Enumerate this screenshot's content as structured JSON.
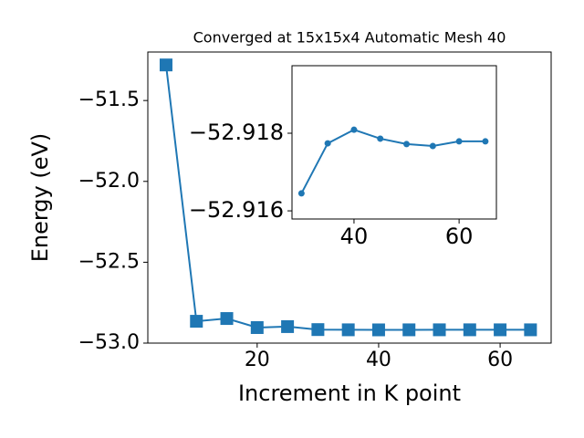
{
  "chart_data": [
    {
      "type": "line",
      "title": "Converged at 15x15x4 Automatic Mesh 40",
      "x_label": "Increment in K point",
      "y_label": "Energy (eV)",
      "x": [
        5,
        10,
        15,
        20,
        25,
        30,
        35,
        40,
        45,
        50,
        55,
        60,
        65
      ],
      "series": [
        {
          "color": "#1f77b4",
          "marker": "square",
          "values": [
            -51.28,
            -52.865,
            -52.848,
            -52.904,
            -52.898,
            -52.91645,
            -52.91774,
            -52.91809,
            -52.91786,
            -52.91772,
            -52.91767,
            -52.91779,
            -52.91779
          ]
        }
      ],
      "xlim": [
        2,
        68.4
      ],
      "xticks": [
        20,
        40,
        60
      ],
      "ylim": [
        -53.0,
        -51.2
      ],
      "yticks": [
        {
          "value": -53.0,
          "label": "−53.0"
        },
        {
          "value": -52.5,
          "label": "−52.5"
        },
        {
          "value": -52.0,
          "label": "−52.0"
        },
        {
          "value": -51.5,
          "label": "−51.5"
        }
      ]
    },
    {
      "type": "line",
      "x": [
        30,
        35,
        40,
        45,
        50,
        55,
        60,
        65
      ],
      "series": [
        {
          "color": "#1f77b4",
          "marker": "circle",
          "values": [
            -52.91645,
            -52.91774,
            -52.91809,
            -52.91786,
            -52.91772,
            -52.91767,
            -52.91779,
            -52.91779
          ]
        }
      ],
      "xlim": [
        28.2,
        67.1
      ],
      "xticks": [
        40,
        60
      ],
      "ylim": [
        -52.91579,
        -52.91974
      ],
      "yticks": [
        {
          "value": -52.916,
          "label": "−52.916"
        },
        {
          "value": -52.918,
          "label": "−52.918"
        }
      ]
    }
  ]
}
